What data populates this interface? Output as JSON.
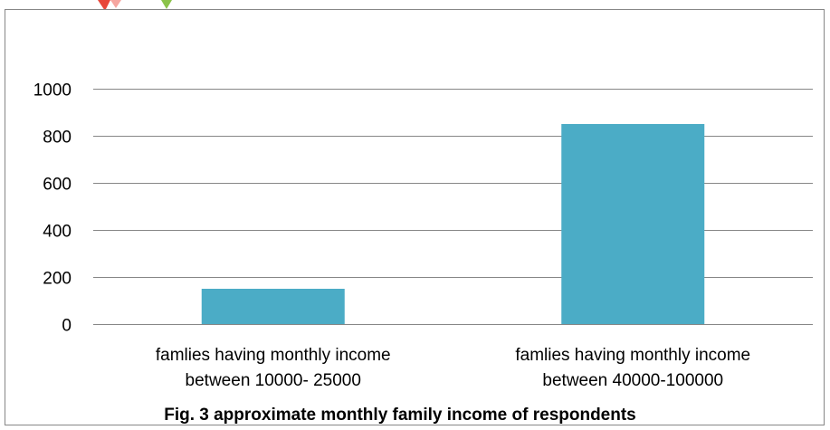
{
  "chart_data": {
    "type": "bar",
    "title": "",
    "xlabel": "",
    "ylabel": "",
    "categories": [
      [
        "famlies having monthly income",
        "between 10000- 25000"
      ],
      [
        "famlies having monthly income",
        "between 40000-100000"
      ]
    ],
    "values": [
      150,
      850
    ],
    "ylim": [
      0,
      1000
    ],
    "yticks": [
      "0",
      "200",
      "400",
      "600",
      "800",
      "1000"
    ],
    "grid": true,
    "legend": "none",
    "bar_color": "#4BACC6",
    "gridline_color": "#878787"
  },
  "caption": "Fig. 3  approximate monthly family  income of respondents",
  "decoration_colors": [
    "#E8473A",
    "#F6A6A0",
    "#8BC34A"
  ]
}
